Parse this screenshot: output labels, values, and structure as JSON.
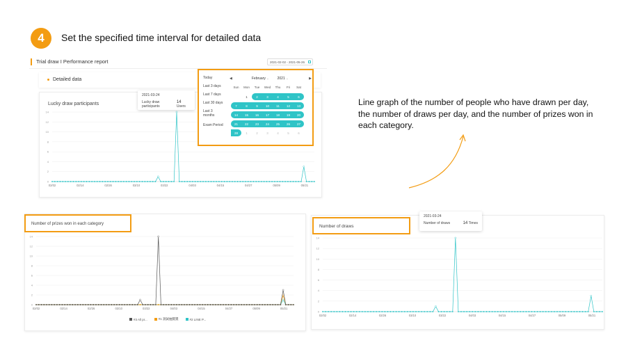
{
  "step": {
    "number": "4",
    "title": "Set the specified time interval for detailed data"
  },
  "header": {
    "title": "Trial draw I Performance report",
    "date_range": "2021-02-02 - 2021-05-26"
  },
  "detailed_data": {
    "label": "Detailed data"
  },
  "presets": [
    "Today",
    "Last 3 days",
    "Last 7 days",
    "Last 30 days",
    "Last 3 months",
    "Exam Period"
  ],
  "calendar": {
    "month": "February",
    "year": "2021",
    "weekdays": [
      "Sun",
      "Mon",
      "Tue",
      "Wed",
      "Thu",
      "Fri",
      "Sat"
    ],
    "days": [
      {
        "d": "",
        "s": 0
      },
      {
        "d": "1",
        "s": 0
      },
      {
        "d": "2",
        "s": 1
      },
      {
        "d": "3",
        "s": 1
      },
      {
        "d": "4",
        "s": 1
      },
      {
        "d": "5",
        "s": 1
      },
      {
        "d": "6",
        "s": 1
      },
      {
        "d": "7",
        "s": 1
      },
      {
        "d": "8",
        "s": 1
      },
      {
        "d": "9",
        "s": 1
      },
      {
        "d": "10",
        "s": 1
      },
      {
        "d": "11",
        "s": 1
      },
      {
        "d": "12",
        "s": 1
      },
      {
        "d": "13",
        "s": 1
      },
      {
        "d": "14",
        "s": 1
      },
      {
        "d": "15",
        "s": 1
      },
      {
        "d": "16",
        "s": 1
      },
      {
        "d": "17",
        "s": 1
      },
      {
        "d": "18",
        "s": 1
      },
      {
        "d": "19",
        "s": 1
      },
      {
        "d": "20",
        "s": 1
      },
      {
        "d": "21",
        "s": 1
      },
      {
        "d": "22",
        "s": 1
      },
      {
        "d": "23",
        "s": 1
      },
      {
        "d": "24",
        "s": 1
      },
      {
        "d": "25",
        "s": 1
      },
      {
        "d": "26",
        "s": 1
      },
      {
        "d": "27",
        "s": 1
      },
      {
        "d": "28",
        "s": 1
      },
      {
        "d": "1",
        "s": 2
      },
      {
        "d": "2",
        "s": 2
      },
      {
        "d": "3",
        "s": 2
      },
      {
        "d": "4",
        "s": 2
      },
      {
        "d": "5",
        "s": 2
      },
      {
        "d": "6",
        "s": 2
      }
    ]
  },
  "description": "Line graph of the number of people who have drawn per day, the number of draws per day, and the number of prizes won in each category.",
  "colors": {
    "accent": "#f39c12",
    "teal": "#2fc4c7",
    "dark": "#555555"
  },
  "tooltips": {
    "participants": {
      "date": "2021-03-24",
      "label": "Lucky draw participants",
      "value": "14",
      "unit": "Users"
    },
    "draws": {
      "date": "2021-03-24",
      "label": "Number of draws",
      "value": "14",
      "unit": "Times"
    }
  },
  "chart_data": [
    {
      "type": "line",
      "title": "Lucky draw participants",
      "x_ticks": [
        "02/02",
        "02/14",
        "02/26",
        "03/10",
        "03/22",
        "04/03",
        "04/15",
        "04/27",
        "05/09",
        "05/21"
      ],
      "y_ticks": [
        0,
        2,
        4,
        6,
        8,
        10,
        12,
        14
      ],
      "ylim": [
        0,
        14
      ],
      "series": [
        {
          "color": "#2fc4c7",
          "points": [
            [
              40,
              1
            ],
            [
              47,
              14
            ],
            [
              95,
              3
            ]
          ]
        }
      ]
    },
    {
      "type": "line",
      "title": "Number of prizes won in each category",
      "x_ticks": [
        "02/02",
        "02/14",
        "02/26",
        "03/10",
        "03/22",
        "04/03",
        "04/15",
        "04/27",
        "05/09",
        "05/21"
      ],
      "y_ticks": [
        0,
        2,
        4,
        6,
        8,
        10,
        12,
        14
      ],
      "ylim": [
        0,
        14
      ],
      "legend": [
        "#3 All pr...",
        "#1 測試抽獎獎",
        "#2 LINE P..."
      ],
      "series": [
        {
          "name": "#3 All pr...",
          "color": "#555555",
          "points": [
            [
              40,
              1
            ],
            [
              47,
              14
            ],
            [
              95,
              3
            ]
          ]
        },
        {
          "name": "#1 測試抽獎獎",
          "color": "#f39c12",
          "points": [
            [
              95,
              2
            ]
          ]
        },
        {
          "name": "#2 LINE P...",
          "color": "#2fc4c7",
          "points": [
            [
              95,
              1
            ]
          ]
        }
      ]
    },
    {
      "type": "line",
      "title": "Number of draws",
      "x_ticks": [
        "02/02",
        "02/14",
        "02/26",
        "03/10",
        "03/22",
        "04/03",
        "04/15",
        "04/27",
        "05/09",
        "05/21"
      ],
      "y_ticks": [
        0,
        2,
        4,
        6,
        8,
        10,
        12,
        14
      ],
      "ylim": [
        0,
        14
      ],
      "series": [
        {
          "color": "#2fc4c7",
          "points": [
            [
              40,
              1
            ],
            [
              47,
              14
            ],
            [
              95,
              3
            ]
          ]
        }
      ]
    }
  ]
}
